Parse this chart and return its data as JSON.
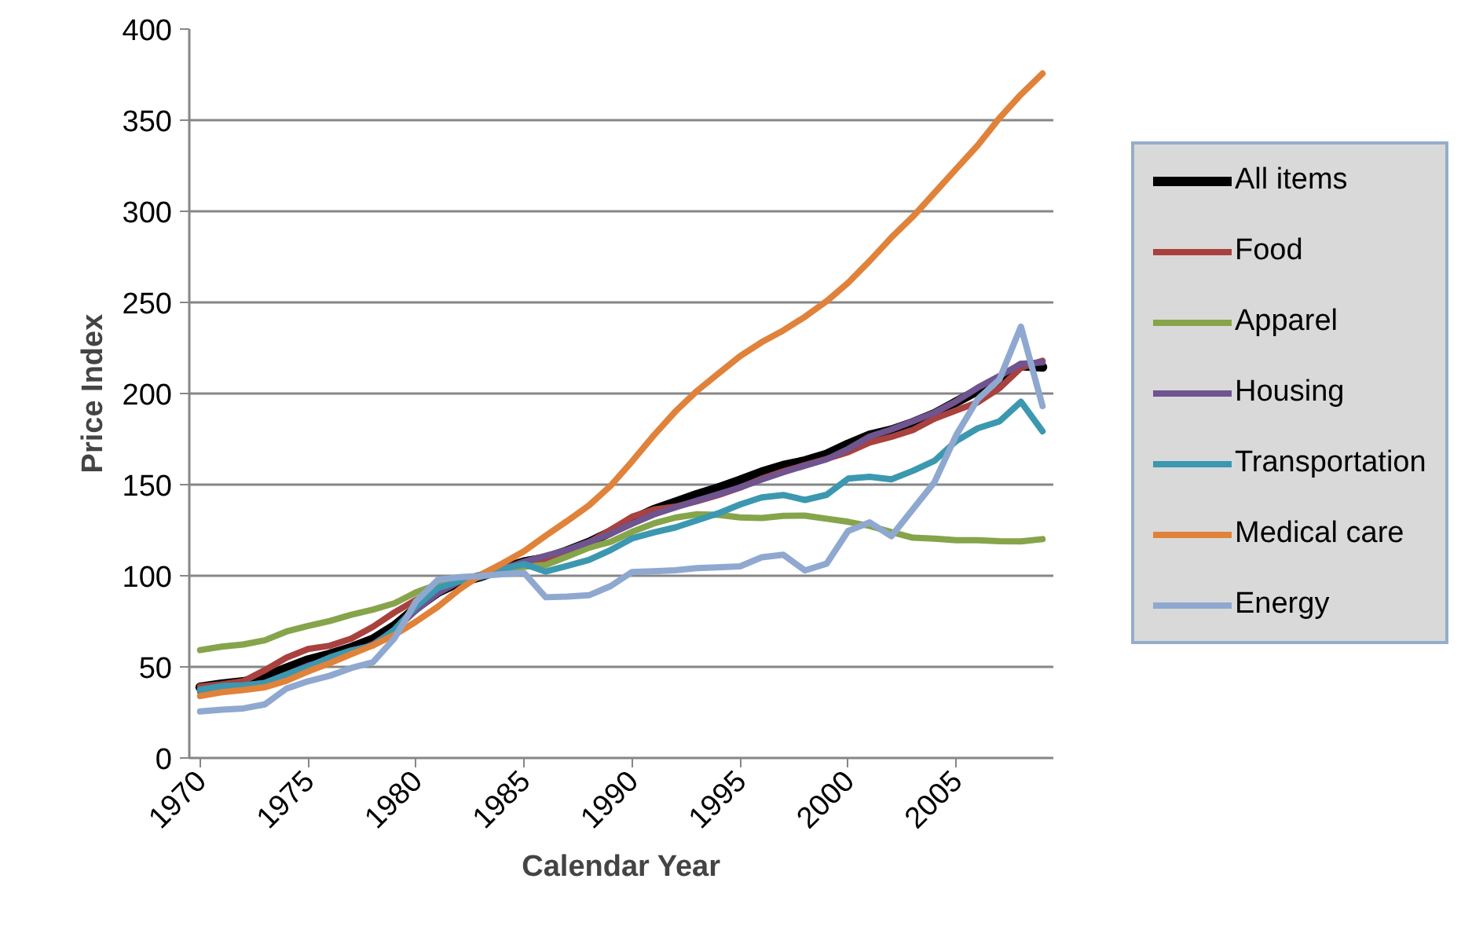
{
  "chart_data": {
    "type": "line",
    "xlabel": "Calendar Year",
    "ylabel": "Price Index",
    "x": [
      1970,
      1971,
      1972,
      1973,
      1974,
      1975,
      1976,
      1977,
      1978,
      1979,
      1980,
      1981,
      1982,
      1983,
      1984,
      1985,
      1986,
      1987,
      1988,
      1989,
      1990,
      1991,
      1992,
      1993,
      1994,
      1995,
      1996,
      1997,
      1998,
      1999,
      2000,
      2001,
      2002,
      2003,
      2004,
      2005,
      2006,
      2007,
      2008,
      2009
    ],
    "xlim": [
      1969.5,
      2009.5
    ],
    "xticks": [
      1970,
      1975,
      1980,
      1985,
      1990,
      1995,
      2000,
      2005
    ],
    "ylim": [
      0,
      400
    ],
    "yticks": [
      0,
      50,
      100,
      150,
      200,
      250,
      300,
      350,
      400
    ],
    "grid": "y",
    "legend": "right",
    "marker": "none",
    "line_style": "solid",
    "series": [
      {
        "name": "All items",
        "color": "#000000",
        "values": [
          38.8,
          40.5,
          41.8,
          44.4,
          49.3,
          53.8,
          56.9,
          60.6,
          65.2,
          72.6,
          82.4,
          90.9,
          96.5,
          99.6,
          103.9,
          107.6,
          109.6,
          113.6,
          118.3,
          124.0,
          130.7,
          136.2,
          140.3,
          144.5,
          148.2,
          152.4,
          156.9,
          160.5,
          163.0,
          166.6,
          172.2,
          177.1,
          179.9,
          184.0,
          188.9,
          195.3,
          201.6,
          207.3,
          215.3,
          214.5
        ]
      },
      {
        "name": "Food",
        "color": "#a9413e",
        "values": [
          39.2,
          40.4,
          42.1,
          48.2,
          55.1,
          59.8,
          61.6,
          65.5,
          72.0,
          79.9,
          86.8,
          93.6,
          97.4,
          99.4,
          103.2,
          105.6,
          109.0,
          113.5,
          118.2,
          125.1,
          132.4,
          136.3,
          137.9,
          140.9,
          144.3,
          148.4,
          153.3,
          157.3,
          160.7,
          164.1,
          167.8,
          173.1,
          176.2,
          180.0,
          186.2,
          190.7,
          195.2,
          202.9,
          214.1,
          218.0
        ]
      },
      {
        "name": "Apparel",
        "color": "#86a44a",
        "values": [
          59.2,
          61.1,
          62.3,
          64.6,
          69.4,
          72.5,
          75.2,
          78.6,
          81.4,
          84.9,
          90.9,
          95.3,
          97.8,
          100.2,
          102.1,
          105.0,
          105.9,
          110.6,
          115.4,
          118.6,
          124.1,
          128.7,
          131.9,
          133.7,
          133.4,
          132.0,
          131.7,
          132.9,
          133.0,
          131.3,
          129.6,
          127.3,
          124.0,
          120.9,
          120.4,
          119.5,
          119.5,
          119.0,
          118.9,
          120.1
        ]
      },
      {
        "name": "Housing",
        "color": "#6f548f",
        "values": [
          36.4,
          38.0,
          39.4,
          41.2,
          45.8,
          50.7,
          53.8,
          57.4,
          62.4,
          70.1,
          81.1,
          90.4,
          96.9,
          99.5,
          103.6,
          107.7,
          110.9,
          114.2,
          118.5,
          123.0,
          128.5,
          133.6,
          137.5,
          141.2,
          144.8,
          148.5,
          152.8,
          156.8,
          160.4,
          163.9,
          169.6,
          176.4,
          180.3,
          184.8,
          189.5,
          195.7,
          203.2,
          209.6,
          216.3,
          217.1
        ]
      },
      {
        "name": "Transportation",
        "color": "#3b98b0",
        "values": [
          37.5,
          39.5,
          39.9,
          41.2,
          45.8,
          50.1,
          55.1,
          59.0,
          61.7,
          70.5,
          83.1,
          93.2,
          97.0,
          99.3,
          103.7,
          106.4,
          102.3,
          105.4,
          108.7,
          114.1,
          120.5,
          123.8,
          126.5,
          130.4,
          134.3,
          139.1,
          143.0,
          144.3,
          141.6,
          144.4,
          153.3,
          154.3,
          152.9,
          157.6,
          163.1,
          173.9,
          180.9,
          184.7,
          195.5,
          179.3
        ]
      },
      {
        "name": "Medical care",
        "color": "#e0823a",
        "values": [
          34.0,
          36.1,
          37.3,
          38.8,
          42.4,
          47.5,
          52.0,
          57.0,
          61.8,
          67.5,
          74.9,
          82.9,
          92.5,
          100.6,
          106.8,
          113.5,
          122.0,
          130.1,
          138.6,
          149.3,
          162.8,
          177.0,
          190.1,
          201.4,
          211.0,
          220.5,
          228.2,
          234.6,
          242.1,
          250.6,
          260.8,
          272.8,
          285.6,
          297.1,
          310.1,
          323.2,
          336.2,
          351.1,
          364.1,
          375.6
        ]
      },
      {
        "name": "Energy",
        "color": "#8fa8d0",
        "values": [
          25.5,
          26.5,
          27.2,
          29.4,
          38.1,
          42.1,
          45.1,
          49.4,
          52.5,
          65.7,
          86.0,
          97.7,
          99.2,
          99.9,
          100.9,
          101.6,
          88.2,
          88.6,
          89.3,
          94.3,
          102.1,
          102.5,
          103.0,
          104.2,
          104.6,
          105.2,
          110.1,
          111.5,
          102.9,
          106.6,
          124.6,
          129.3,
          121.7,
          136.5,
          151.4,
          177.1,
          196.9,
          207.7,
          236.7,
          193.1
        ]
      }
    ]
  }
}
